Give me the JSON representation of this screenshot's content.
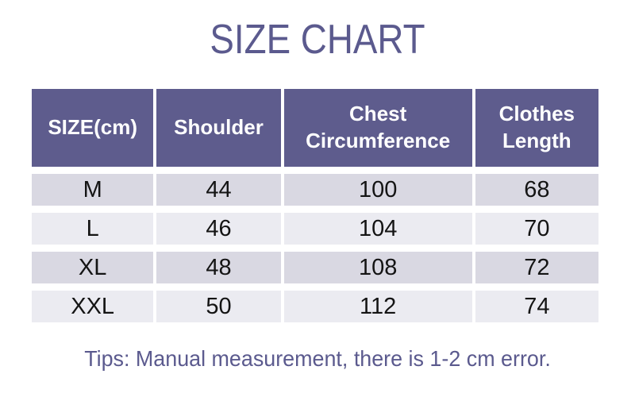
{
  "title": "SIZE CHART",
  "tip": "Tips: Manual measurement, there is 1-2 cm error.",
  "colors": {
    "accent_text": "#5b5a8e",
    "header_bg": "#5e5c8d",
    "header_text": "#ffffff",
    "row_odd_bg": "#d9d8e2",
    "row_even_bg": "#ebebf1",
    "body_text": "#141414",
    "page_bg": "#ffffff"
  },
  "chart_data": {
    "type": "table",
    "title": "SIZE CHART",
    "columns": [
      "SIZE(cm)",
      "Shoulder",
      "Chest Circumference",
      "Clothes Length"
    ],
    "rows": [
      [
        "M",
        44,
        100,
        68
      ],
      [
        "L",
        46,
        104,
        70
      ],
      [
        "XL",
        48,
        108,
        72
      ],
      [
        "XXL",
        50,
        112,
        74
      ]
    ],
    "note": "Tips: Manual measurement, there is 1-2 cm error.",
    "layout": {
      "header_position": "top",
      "grid": "white-gaps",
      "unit": "cm"
    }
  }
}
